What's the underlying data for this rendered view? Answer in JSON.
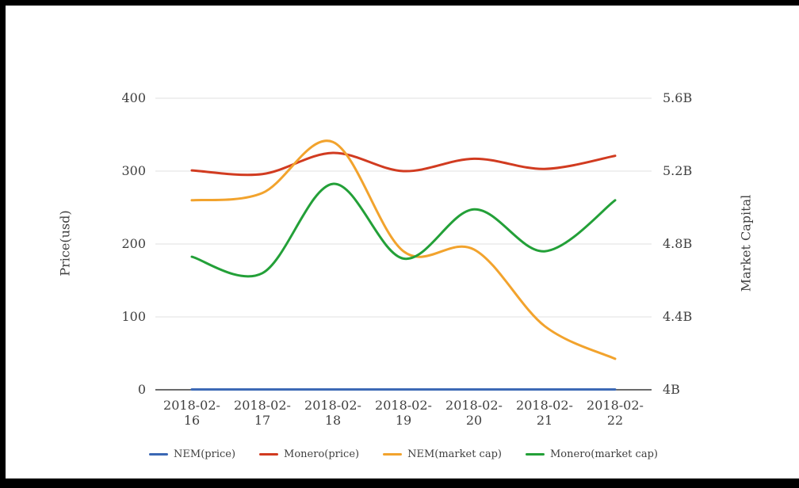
{
  "window": {
    "background": "#ffffff",
    "border_color": "#000000"
  },
  "colors": {
    "grid_line": "#e1e1e1",
    "axis_line": "#3a3a3a",
    "text": "#404040"
  },
  "chart_data": {
    "type": "line",
    "smooth": true,
    "grid": true,
    "legend_position": "bottom",
    "x": [
      "2018-02-16",
      "2018-02-17",
      "2018-02-18",
      "2018-02-19",
      "2018-02-20",
      "2018-02-21",
      "2018-02-22"
    ],
    "left_axis": {
      "label": "Price(usd)",
      "range": [
        0,
        400
      ],
      "tick_labels": [
        "400",
        "300",
        "200",
        "100",
        "0"
      ]
    },
    "right_axis": {
      "label": "Market Capital",
      "range": [
        4,
        5.6
      ],
      "tick_labels": [
        "5.6B",
        "5.2B",
        "4.8B",
        "4.4B",
        "4B"
      ]
    },
    "series": [
      {
        "name": "NEM(price)",
        "axis": "left",
        "color": "#3a67b4",
        "values": [
          0.4,
          0.4,
          0.4,
          0.4,
          0.4,
          0.4,
          0.4
        ]
      },
      {
        "name": "Monero(price)",
        "axis": "left",
        "color": "#d13b20",
        "values": [
          301,
          296,
          325,
          300,
          317,
          303,
          321
        ]
      },
      {
        "name": "NEM(market cap)",
        "axis": "right",
        "color": "#f2a32d",
        "values": [
          5.04,
          5.08,
          5.36,
          4.76,
          4.77,
          4.35,
          4.17
        ]
      },
      {
        "name": "Monero(market cap)",
        "axis": "right",
        "color": "#23a038",
        "values": [
          4.73,
          4.64,
          5.13,
          4.72,
          4.99,
          4.76,
          5.04
        ]
      }
    ]
  }
}
